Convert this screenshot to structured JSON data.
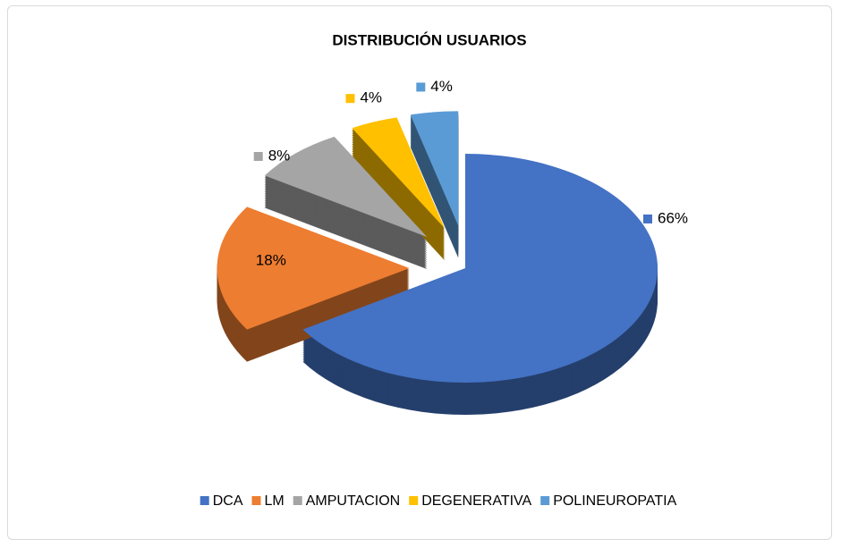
{
  "chart_data": {
    "type": "pie",
    "title": "DISTRIBUCIÓN USUARIOS",
    "categories": [
      "DCA",
      "LM",
      "AMPUTACION",
      "DEGENERATIVA",
      "POLINEUROPATIA"
    ],
    "values": [
      66,
      18,
      8,
      4,
      4
    ],
    "value_labels": [
      "66%",
      "18%",
      "8%",
      "4%",
      "4%"
    ],
    "colors": [
      "#4472c4",
      "#ed7d31",
      "#a5a5a5",
      "#ffc000",
      "#5b9bd5"
    ],
    "legend": "bottom"
  }
}
